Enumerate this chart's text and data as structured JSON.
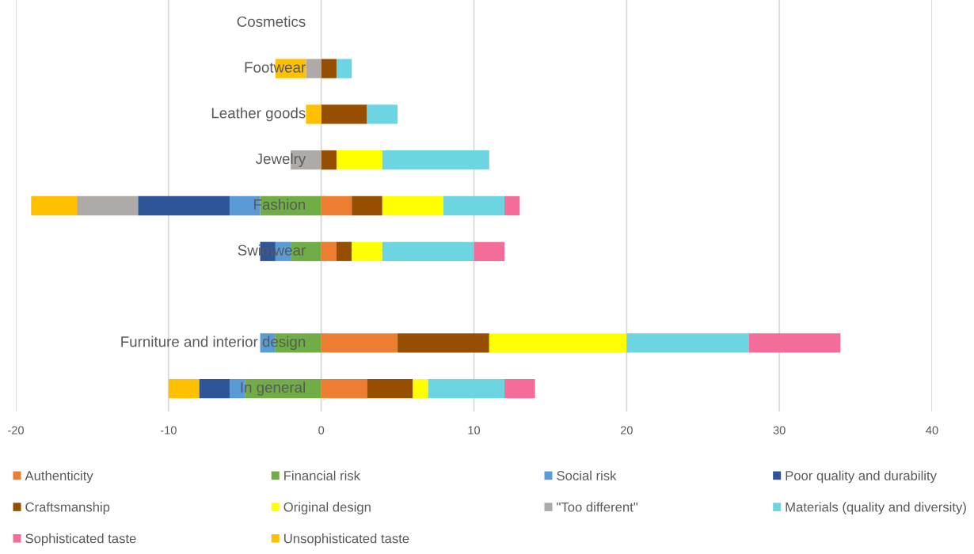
{
  "chart_data": {
    "type": "bar",
    "orientation": "horizontal",
    "stacked": true,
    "categories": [
      "Cosmetics",
      "Footwear",
      "Leather goods",
      "Jewelry",
      "Fashion",
      "Swimwear",
      null,
      "Furniture and interior design",
      "In general"
    ],
    "series": [
      {
        "name": "Authenticity",
        "color": "#ed7d31",
        "values": [
          null,
          null,
          null,
          null,
          2,
          1,
          null,
          5,
          3
        ]
      },
      {
        "name": "Financial risk",
        "color": "#70ad47",
        "values": [
          null,
          null,
          null,
          null,
          -4,
          -2,
          null,
          -3,
          -5
        ]
      },
      {
        "name": "Social risk",
        "color": "#5b9bd5",
        "values": [
          null,
          null,
          null,
          null,
          -2,
          -1,
          null,
          -1,
          -1
        ]
      },
      {
        "name": "Poor quality and durability",
        "color": "#2e5597",
        "values": [
          null,
          null,
          null,
          null,
          -6,
          -1,
          null,
          null,
          -2
        ]
      },
      {
        "name": "Craftsmanship",
        "color": "#964f00",
        "values": [
          null,
          1,
          3,
          1,
          2,
          1,
          null,
          6,
          3
        ]
      },
      {
        "name": "Original design",
        "color": "#ffff00",
        "values": [
          null,
          null,
          null,
          3,
          4,
          2,
          null,
          9,
          1
        ]
      },
      {
        "name": "\"Too different\"",
        "color": "#aeaaa8",
        "values": [
          null,
          -1,
          null,
          -2,
          -4,
          null,
          null,
          null,
          null
        ]
      },
      {
        "name": "Materials (quality and diversity)",
        "color": "#6dd5e1",
        "values": [
          null,
          1,
          2,
          7,
          4,
          6,
          null,
          8,
          5
        ]
      },
      {
        "name": "Sophisticated taste",
        "color": "#f36c9a",
        "values": [
          null,
          null,
          null,
          null,
          1,
          2,
          null,
          6,
          2
        ]
      },
      {
        "name": "Unsophisticated taste",
        "color": "#ffc000",
        "values": [
          null,
          -2,
          -1,
          null,
          -3,
          null,
          null,
          null,
          -2
        ]
      }
    ],
    "xlim": [
      -20,
      40
    ],
    "xticks": [
      -20,
      -10,
      0,
      10,
      20,
      30,
      40
    ],
    "grid": "x",
    "legend": "bottom"
  }
}
